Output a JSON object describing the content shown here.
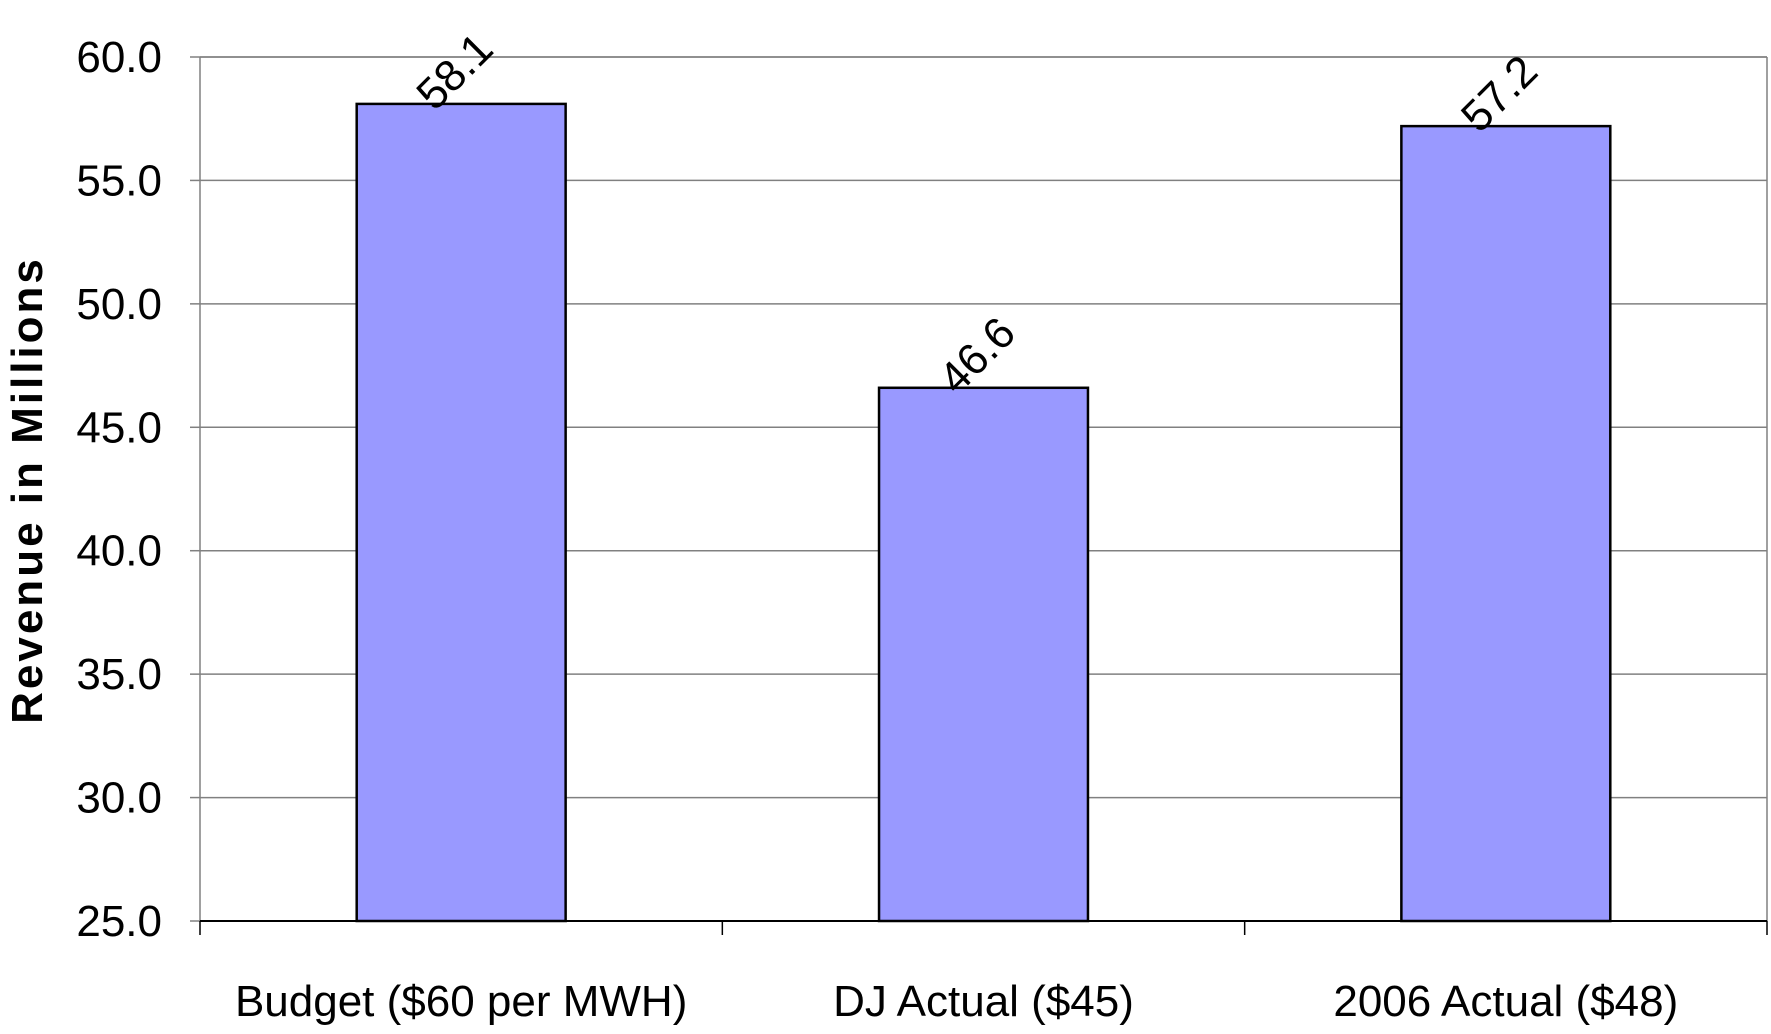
{
  "chart_data": {
    "type": "bar",
    "title": "",
    "xlabel": "",
    "ylabel": "Revenue in Millions",
    "categories": [
      "Budget ($60 per MWH)",
      "DJ Actual ($45)",
      "2006 Actual ($48)"
    ],
    "values": [
      58.1,
      46.6,
      57.2
    ],
    "data_labels": [
      "58.1",
      "46.6",
      "57.2"
    ],
    "ylim": [
      25.0,
      60.0
    ],
    "yticks": [
      25.0,
      30.0,
      35.0,
      40.0,
      45.0,
      50.0,
      55.0,
      60.0
    ],
    "ytick_labels": [
      "25.0",
      "30.0",
      "35.0",
      "40.0",
      "45.0",
      "50.0",
      "55.0",
      "60.0"
    ],
    "grid": true,
    "legend": "none",
    "bar_color": "#9999ff",
    "bar_edge_color": "#000000"
  }
}
